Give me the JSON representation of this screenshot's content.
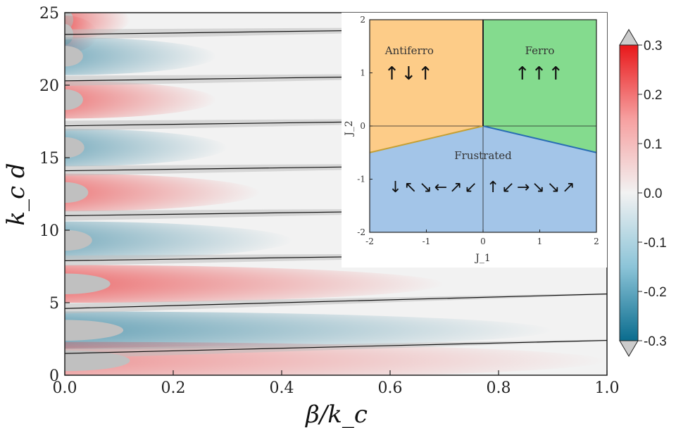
{
  "chart_data": [
    {
      "type": "heatmap",
      "title": "",
      "xlabel": "β/k_c",
      "ylabel": "k_c d",
      "xlim": [
        0.0,
        1.0
      ],
      "ylim": [
        0,
        25
      ],
      "x_ticks": [
        "0.0",
        "0.2",
        "0.4",
        "0.6",
        "0.8",
        "1.0"
      ],
      "x_tick_values": [
        0.0,
        0.2,
        0.4,
        0.6,
        0.8,
        1.0
      ],
      "y_ticks": [
        "0",
        "5",
        "10",
        "15",
        "20",
        "25"
      ],
      "y_tick_values": [
        0,
        5,
        10,
        15,
        20,
        25
      ],
      "colorbar": {
        "min": -0.3,
        "max": 0.3,
        "ticks": [
          "0.3",
          "0.2",
          "0.1",
          "0.0",
          "-0.1",
          "-0.2",
          "-0.3"
        ],
        "tick_values": [
          0.3,
          0.2,
          0.1,
          0.0,
          -0.1,
          -0.2,
          -0.3
        ],
        "extend": "both",
        "colors": {
          "negative": "#0a6c8e",
          "zero": "#f2f2f2",
          "positive": "#e8181a",
          "masked": "#c0c0c0"
        }
      },
      "lobes": [
        {
          "y": 24.5,
          "sign": 1,
          "reach": 0.12,
          "amp": 0.9
        },
        {
          "y": 23.5,
          "sign": 1,
          "reach": 0.06,
          "amp": 0.5
        },
        {
          "y": 22.0,
          "sign": -1,
          "reach": 0.28,
          "amp": 0.85
        },
        {
          "y": 19.0,
          "sign": 1,
          "reach": 0.28,
          "amp": 0.9
        },
        {
          "y": 15.7,
          "sign": -1,
          "reach": 0.3,
          "amp": 0.85
        },
        {
          "y": 12.6,
          "sign": 1,
          "reach": 0.36,
          "amp": 0.9
        },
        {
          "y": 9.3,
          "sign": -1,
          "reach": 0.42,
          "amp": 0.85
        },
        {
          "y": 6.3,
          "sign": 1,
          "reach": 0.7,
          "amp": 1.0
        },
        {
          "y": 3.1,
          "sign": -1,
          "reach": 0.9,
          "amp": 1.0
        },
        {
          "y": 1.0,
          "sign": 1,
          "reach": 1.0,
          "amp": 0.7
        }
      ],
      "boundary_lines": [
        {
          "y0": 23.5,
          "y1": 24.0
        },
        {
          "y0": 20.3,
          "y1": 20.8
        },
        {
          "y0": 17.2,
          "y1": 17.7
        },
        {
          "y0": 14.1,
          "y1": 14.6
        },
        {
          "y0": 11.0,
          "y1": 11.5
        },
        {
          "y0": 7.9,
          "y1": 8.4
        },
        {
          "y0": 4.6,
          "y1": 5.6
        },
        {
          "y0": 1.5,
          "y1": 2.4
        }
      ]
    },
    {
      "type": "diagram",
      "xlabel": "J_1",
      "ylabel": "J_2",
      "xlim": [
        -2,
        2
      ],
      "ylim": [
        -2,
        2
      ],
      "x_ticks": [
        "-2",
        "-1",
        "0",
        "1",
        "2"
      ],
      "x_tick_values": [
        -2,
        -1,
        0,
        1,
        2
      ],
      "y_ticks": [
        "2",
        "1",
        "0",
        "-1",
        "-2"
      ],
      "y_tick_values": [
        2,
        1,
        0,
        -1,
        -2
      ],
      "regions": [
        {
          "name": "Antiferro",
          "color": "#fdcc88",
          "label_at": [
            -1.3,
            1.35
          ],
          "arrows": "↑↓↑"
        },
        {
          "name": "Ferro",
          "color": "#84db8e",
          "label_at": [
            1.0,
            1.35
          ],
          "arrows": "↑↑↑"
        },
        {
          "name": "Frustrated",
          "color": "#a3c5e8",
          "label_at": [
            0.0,
            -0.62
          ],
          "arrows": "↓↖↘←↗↙ ↑↙→↘↘↗"
        }
      ],
      "boundaries": [
        {
          "from": [
            -2,
            -0.5
          ],
          "to": [
            0,
            0
          ],
          "color": "#c6a034"
        },
        {
          "from": [
            0,
            0
          ],
          "to": [
            2,
            -0.5
          ],
          "color": "#2a6eb4"
        },
        {
          "from": [
            0,
            0
          ],
          "to": [
            0,
            2
          ],
          "color": "#222222"
        }
      ]
    }
  ]
}
